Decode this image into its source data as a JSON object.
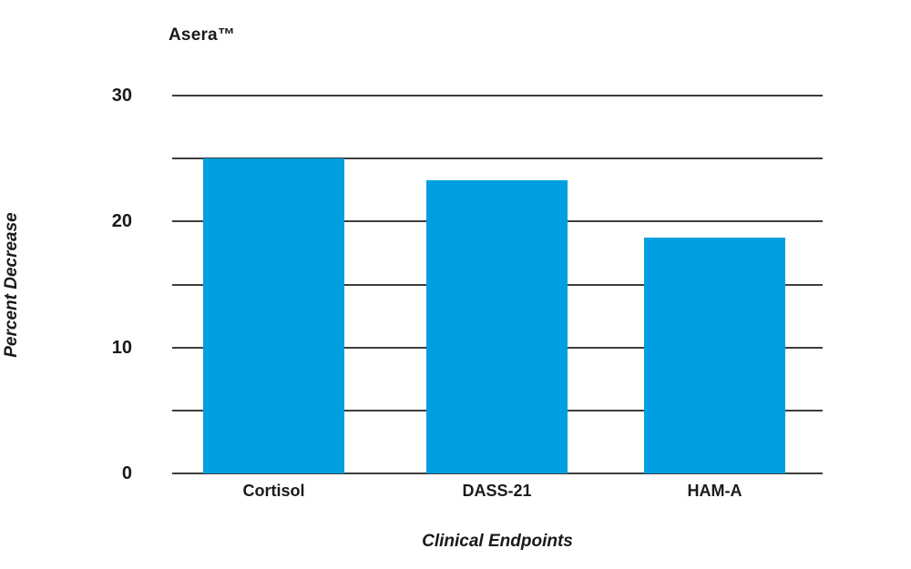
{
  "chart": {
    "title": "Asera™"
  },
  "chart_data": {
    "type": "bar",
    "title": "Asera™",
    "categories": [
      "Cortisol",
      "DASS-21",
      "HAM-A"
    ],
    "values": [
      25.0,
      23.3,
      18.7
    ],
    "xlabel": "Clinical Endpoints",
    "ylabel": "Percent Decrease",
    "ylim": [
      0,
      30
    ],
    "ytick_interval": 5,
    "ytick_labels_shown": [
      0,
      10,
      20,
      30
    ],
    "grid": true,
    "legend_position": "none",
    "bar_color": "#009FDF",
    "gridline_color": "#3d3d3d",
    "text_color": "#1a1a1a",
    "background_color": "#ffffff"
  }
}
